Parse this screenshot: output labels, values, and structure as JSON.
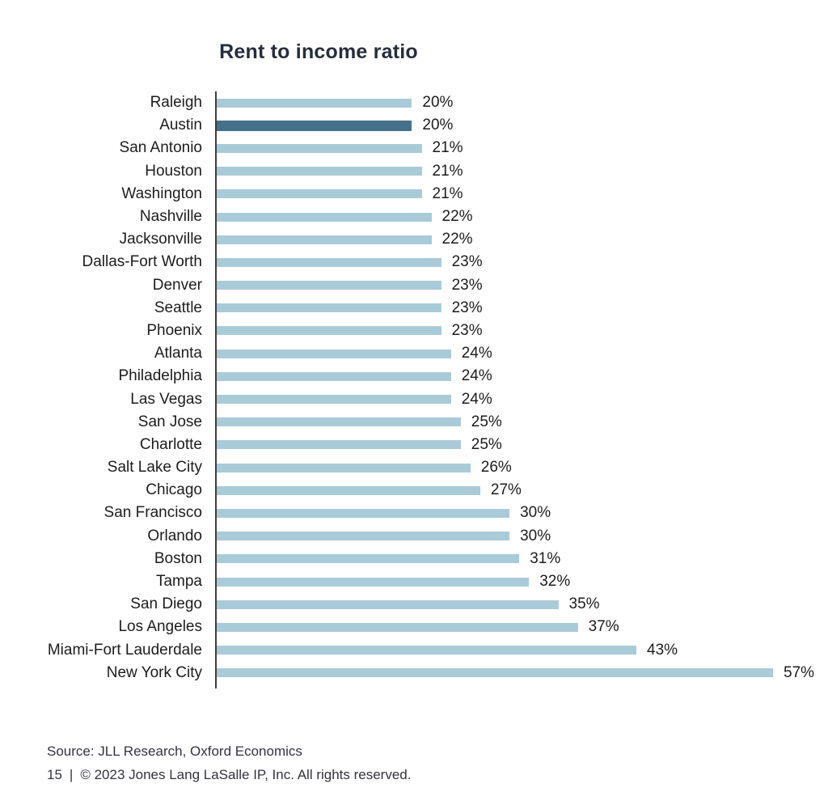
{
  "chart_data": {
    "type": "bar",
    "orientation": "horizontal",
    "title": "Rent to income ratio",
    "categories": [
      "Raleigh",
      "Austin",
      "San Antonio",
      "Houston",
      "Washington",
      "Nashville",
      "Jacksonville",
      "Dallas-Fort Worth",
      "Denver",
      "Seattle",
      "Phoenix",
      "Atlanta",
      "Philadelphia",
      "Las Vegas",
      "San Jose",
      "Charlotte",
      "Salt Lake City",
      "Chicago",
      "San Francisco",
      "Orlando",
      "Boston",
      "Tampa",
      "San Diego",
      "Los Angeles",
      "Miami-Fort Lauderdale",
      "New York City"
    ],
    "values": [
      20,
      20,
      21,
      21,
      21,
      22,
      22,
      23,
      23,
      23,
      23,
      24,
      24,
      24,
      25,
      25,
      26,
      27,
      30,
      30,
      31,
      32,
      35,
      37,
      43,
      57
    ],
    "value_labels": [
      "20%",
      "20%",
      "21%",
      "21%",
      "21%",
      "22%",
      "22%",
      "23%",
      "23%",
      "23%",
      "23%",
      "24%",
      "24%",
      "24%",
      "25%",
      "25%",
      "26%",
      "27%",
      "30%",
      "30%",
      "31%",
      "32%",
      "35%",
      "37%",
      "43%",
      "57%"
    ],
    "unit": "%",
    "xlim": [
      0,
      60
    ],
    "grid": false,
    "legend": false,
    "highlight_category": "Austin",
    "colors": {
      "bar": "#a9cbd8",
      "highlight_bar": "#45708a",
      "axis": "#3d3d3d",
      "title": "#262d3e",
      "text": "#1c1c1c"
    }
  },
  "footer": {
    "source": "Source: JLL Research, Oxford Economics",
    "page_number": "15",
    "separator": "|",
    "copyright": "© 2023 Jones Lang LaSalle IP, Inc. All rights reserved."
  }
}
